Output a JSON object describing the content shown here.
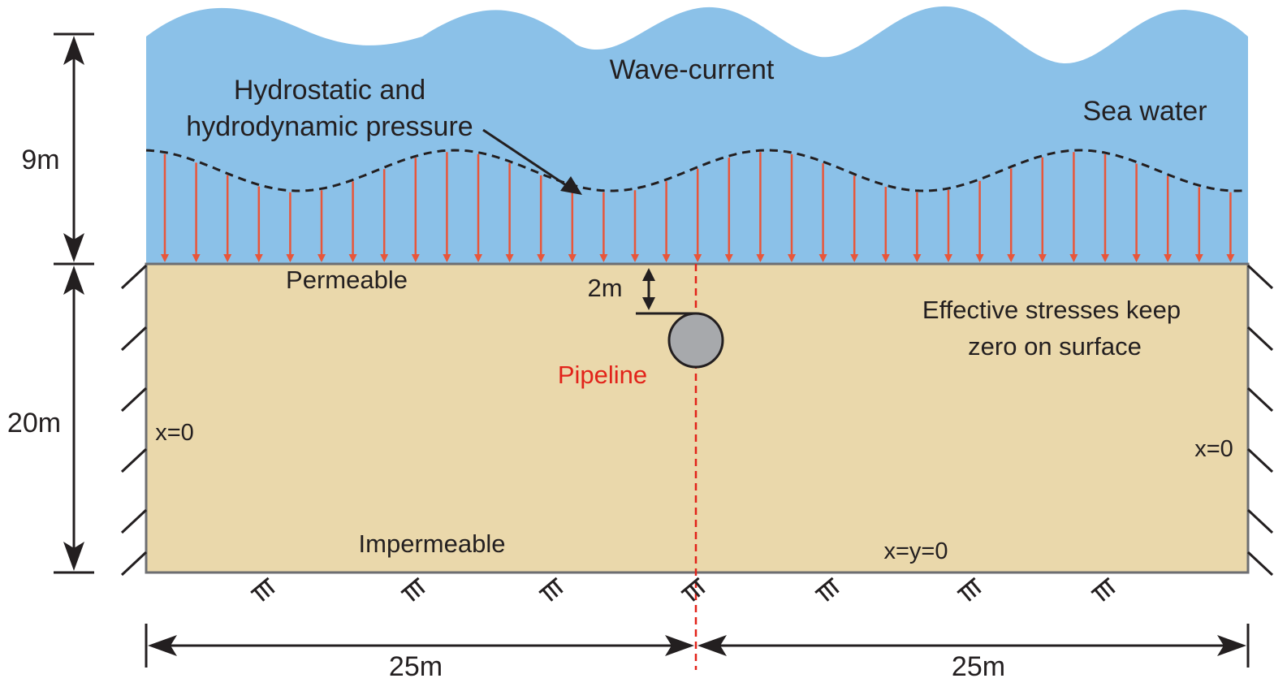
{
  "labels": {
    "wave_current": "Wave-current",
    "sea_water": "Sea water",
    "pressure_line1": "Hydrostatic and",
    "pressure_line2": "hydrodynamic pressure",
    "permeable": "Permeable",
    "impermeable": "Impermeable",
    "pipeline": "Pipeline",
    "burial_depth": "2m",
    "effective_line1": "Effective stresses keep",
    "effective_line2": "zero on surface",
    "left_bc": "x=0",
    "right_bc": "x=0",
    "bottom_bc": "x=y=0"
  },
  "dimensions": {
    "water_depth": "9m",
    "seabed_depth": "20m",
    "left_width": "25m",
    "right_width": "25m"
  },
  "colors": {
    "sea": "#8bc1e8",
    "seabed": "#ead8ab",
    "seabed_border": "#6d6e71",
    "pressure_arrow": "#e8563a",
    "pipe_fill": "#a7a9ac",
    "centerline": "#e2231a",
    "ink": "#231f20"
  },
  "icons": {
    "fixed_support": "fixed-support-icon",
    "roller_support": "roller-hatch-icon"
  }
}
